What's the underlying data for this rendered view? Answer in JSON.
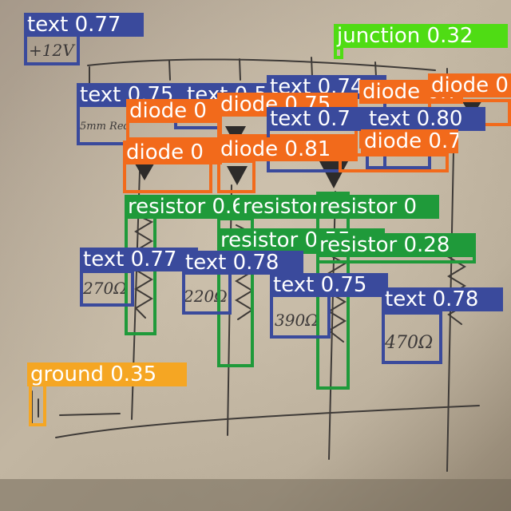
{
  "colors": {
    "text": "#3a4a9c",
    "diode": "#f26a1b",
    "resistor": "#1f9a3a",
    "junction": "#4fdc14",
    "ground": "#f5a623"
  },
  "handwriting": {
    "supply": "+12V",
    "diode_note": "5mm Red",
    "r1": "270Ω",
    "r2": "220Ω",
    "r3": "390Ω",
    "r4": "470Ω"
  },
  "detections": [
    {
      "cls": "text",
      "label": "text 0.77"
    },
    {
      "cls": "junction",
      "label": "junction 0.32"
    },
    {
      "cls": "text",
      "label": "text 0.75"
    },
    {
      "cls": "text",
      "label": "text 0.5"
    },
    {
      "cls": "text",
      "label": "text 0.74"
    },
    {
      "cls": "diode",
      "label": "diode 0"
    },
    {
      "cls": "diode",
      "label": "diode 0.75"
    },
    {
      "cls": "diode",
      "label": "diode 0.7"
    },
    {
      "cls": "diode",
      "label": "diode 0"
    },
    {
      "cls": "text",
      "label": "text 0.7"
    },
    {
      "cls": "text",
      "label": "text 0.80"
    },
    {
      "cls": "diode",
      "label": "diode 0.73"
    },
    {
      "cls": "diode",
      "label": "diode 0"
    },
    {
      "cls": "diode",
      "label": "diode 0.81"
    },
    {
      "cls": "resistor",
      "label": "resistor 0.69"
    },
    {
      "cls": "resistor",
      "label": "resistor 0"
    },
    {
      "cls": "resistor",
      "label": "resistor 0"
    },
    {
      "cls": "resistor",
      "label": "resistor 0.55"
    },
    {
      "cls": "resistor",
      "label": "resistor 0.28"
    },
    {
      "cls": "text",
      "label": "text 0.77"
    },
    {
      "cls": "text",
      "label": "text 0.78"
    },
    {
      "cls": "text",
      "label": "text 0.75"
    },
    {
      "cls": "text",
      "label": "text 0.78"
    },
    {
      "cls": "ground",
      "label": "ground 0.35"
    }
  ]
}
